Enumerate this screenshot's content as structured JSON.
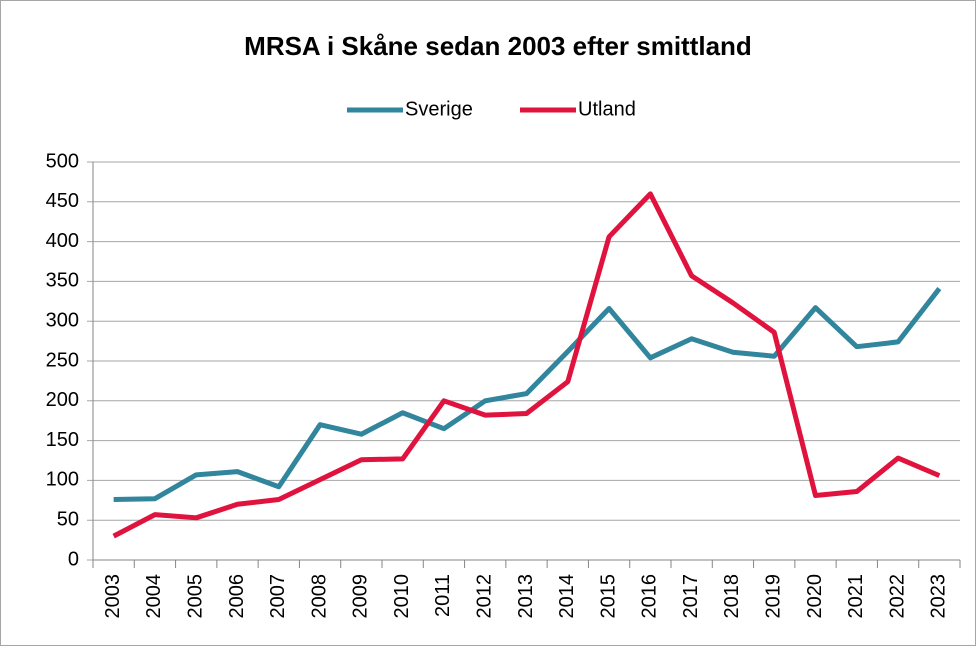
{
  "chart_data": {
    "type": "line",
    "title": "MRSA i Skåne sedan 2003 efter smittland",
    "categories": [
      "2003",
      "2004",
      "2005",
      "2006",
      "2007",
      "2008",
      "2009",
      "2010",
      "2011",
      "2012",
      "2013",
      "2014",
      "2015",
      "2016",
      "2017",
      "2018",
      "2019",
      "2020",
      "2021",
      "2022",
      "2023"
    ],
    "series": [
      {
        "name": "Sverige",
        "color": "#31859c",
        "values": [
          76,
          77,
          107,
          111,
          92,
          170,
          158,
          185,
          165,
          200,
          209,
          262,
          316,
          254,
          278,
          261,
          256,
          317,
          268,
          274,
          341
        ]
      },
      {
        "name": "Utland",
        "color": "#e0123e",
        "values": [
          30,
          57,
          53,
          70,
          76,
          101,
          126,
          127,
          200,
          182,
          184,
          224,
          406,
          460,
          357,
          323,
          286,
          81,
          86,
          128,
          106
        ]
      }
    ],
    "ylim": [
      0,
      500
    ],
    "yticks": [
      0,
      50,
      100,
      150,
      200,
      250,
      300,
      350,
      400,
      450,
      500
    ],
    "grid": true,
    "legend": "top"
  }
}
